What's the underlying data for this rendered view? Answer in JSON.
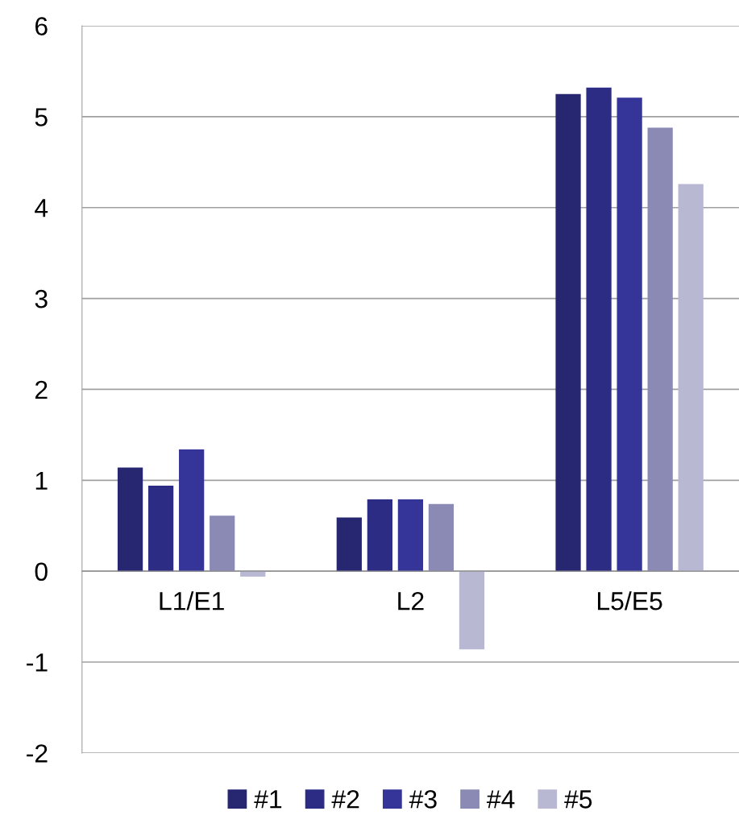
{
  "chart_data": {
    "type": "bar",
    "categories": [
      "L1/E1",
      "L2",
      "L5/E5"
    ],
    "series": [
      {
        "name": "#1",
        "color": "#262671",
        "values": [
          1.14,
          0.59,
          5.25
        ]
      },
      {
        "name": "#2",
        "color": "#2c2c85",
        "values": [
          0.94,
          0.79,
          5.32
        ]
      },
      {
        "name": "#3",
        "color": "#353599",
        "values": [
          1.34,
          0.79,
          5.21
        ]
      },
      {
        "name": "#4",
        "color": "#8a8ab5",
        "values": [
          0.61,
          0.74,
          4.88
        ]
      },
      {
        "name": "#5",
        "color": "#b8b8d2",
        "values": [
          -0.06,
          -0.86,
          4.26
        ]
      }
    ],
    "ylim": [
      -2,
      6
    ],
    "yticks": [
      -2,
      -1,
      0,
      1,
      2,
      3,
      4,
      5,
      6
    ],
    "grid": "y",
    "legend": "bottom"
  }
}
